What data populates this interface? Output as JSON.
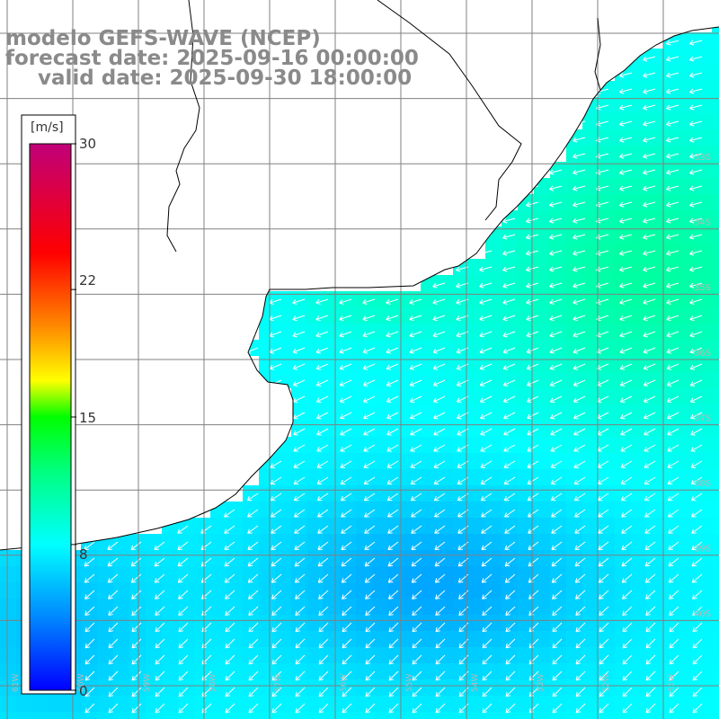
{
  "title": {
    "line1": "modelo GEFS-WAVE (NCEP)",
    "line2": "forecast date: 2025-09-16 00:00:00",
    "line3": "valid date: 2025-09-30 18:00:00"
  },
  "colorbar": {
    "unit": "[m/s]",
    "min": 0,
    "max": 30,
    "tick_labels": [
      "30",
      "22",
      "15",
      "8",
      "0"
    ],
    "tick_values": [
      30,
      22,
      15,
      8,
      0
    ],
    "stops": [
      {
        "v": 0,
        "c": "#0000ff"
      },
      {
        "v": 4,
        "c": "#0088ff"
      },
      {
        "v": 8,
        "c": "#00ffff"
      },
      {
        "v": 12,
        "c": "#00ff80"
      },
      {
        "v": 15,
        "c": "#00ff00"
      },
      {
        "v": 17,
        "c": "#ffff00"
      },
      {
        "v": 20,
        "c": "#ff8800"
      },
      {
        "v": 24,
        "c": "#ff0000"
      },
      {
        "v": 30,
        "c": "#c0007a"
      }
    ]
  },
  "lat_labels": [
    "33S",
    "34S",
    "35S",
    "36S",
    "37S",
    "38S",
    "39S",
    "40S"
  ],
  "lon_labels": [
    "61W",
    "60W",
    "59W",
    "58W",
    "57W",
    "56W",
    "55W",
    "54W",
    "53W",
    "52W",
    "51W"
  ],
  "colors": {
    "land": "#ffffff",
    "coastline": "#000000",
    "grid": "#808080",
    "arrow": "#ffffff",
    "title": "#8a8a8a"
  },
  "field": {
    "description_units": "m/s",
    "typical_speed_offshore": 8,
    "peak_speed_northeast": 11,
    "min_speed_south": 5,
    "arrow_direction": "from east/northeast toward southwest"
  }
}
